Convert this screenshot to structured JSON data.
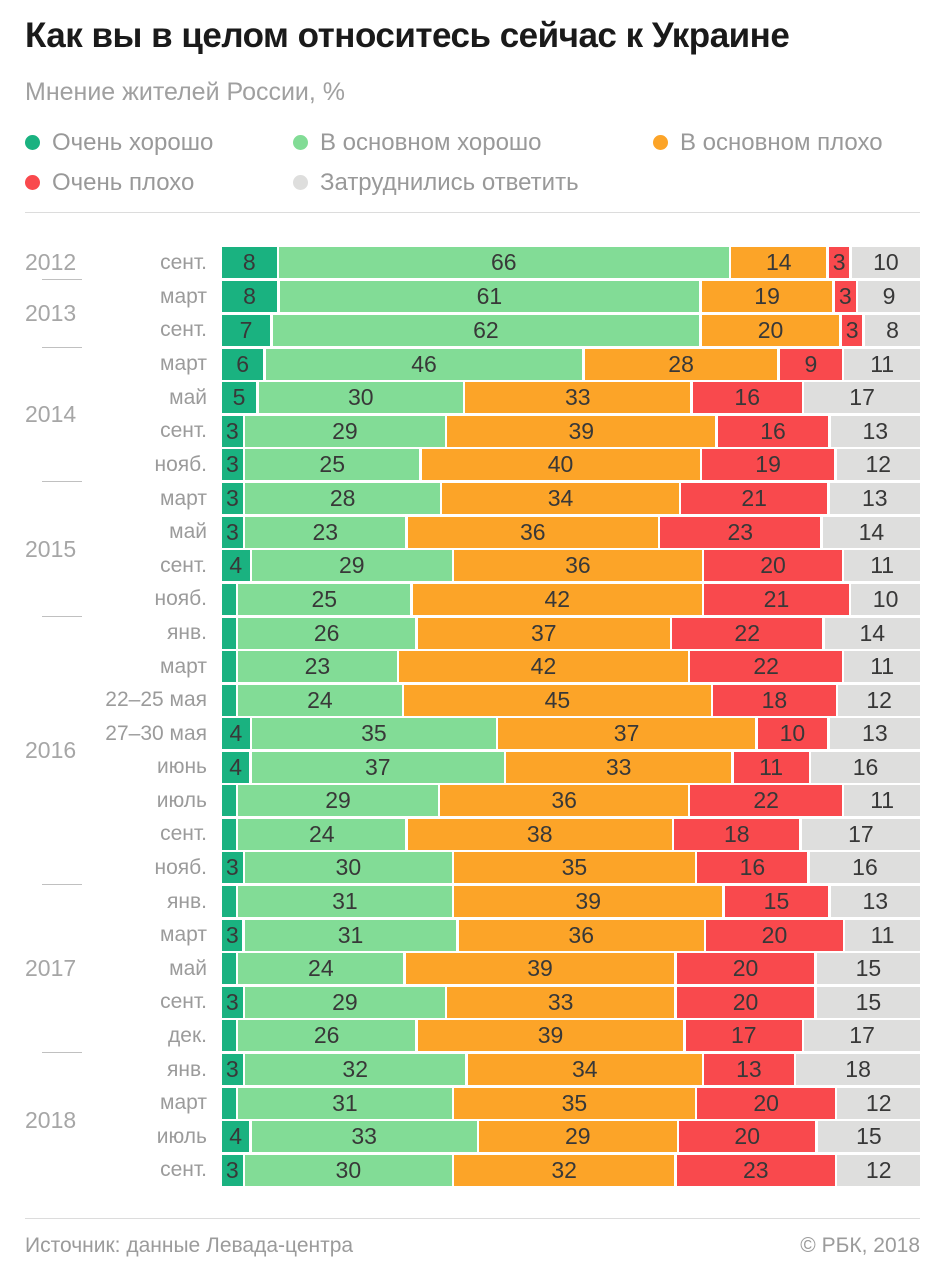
{
  "title": "Как вы в целом относитесь сейчас к Украине",
  "subtitle": "Мнение жителей России, %",
  "legend": [
    {
      "label": "Очень хорошо",
      "color": "#1ab280"
    },
    {
      "label": "В основном хорошо",
      "color": "#82dc96"
    },
    {
      "label": "В основном плохо",
      "color": "#fca428"
    },
    {
      "label": "Очень плохо",
      "color": "#f9494d"
    },
    {
      "label": "Затруднились ответить",
      "color": "#dededd"
    }
  ],
  "footer": {
    "source": "Источник: данные Левада-центра",
    "copyright": "© РБК, 2018"
  },
  "chart_data": {
    "type": "bar",
    "stacked": true,
    "orientation": "horizontal",
    "unit": "%",
    "series": [
      "Очень хорошо",
      "В основном хорошо",
      "В основном плохо",
      "Очень плохо",
      "Затруднились ответить"
    ],
    "colors": [
      "#1ab280",
      "#82dc96",
      "#fca428",
      "#f9494d",
      "#dededd"
    ],
    "value_label_min": 3,
    "legend_position": "top",
    "groups": [
      {
        "year": "2012",
        "rows": [
          {
            "month": "сент.",
            "values": [
              8,
              66,
              14,
              3,
              10
            ]
          }
        ]
      },
      {
        "year": "2013",
        "rows": [
          {
            "month": "март",
            "values": [
              8,
              61,
              19,
              3,
              9
            ]
          },
          {
            "month": "сент.",
            "values": [
              7,
              62,
              20,
              3,
              8
            ]
          }
        ]
      },
      {
        "year": "2014",
        "rows": [
          {
            "month": "март",
            "values": [
              6,
              46,
              28,
              9,
              11
            ]
          },
          {
            "month": "май",
            "values": [
              5,
              30,
              33,
              16,
              17
            ]
          },
          {
            "month": "сент.",
            "values": [
              3,
              29,
              39,
              16,
              13
            ]
          },
          {
            "month": "нояб.",
            "values": [
              3,
              25,
              40,
              19,
              12
            ]
          }
        ]
      },
      {
        "year": "2015",
        "rows": [
          {
            "month": "март",
            "values": [
              3,
              28,
              34,
              21,
              13
            ]
          },
          {
            "month": "май",
            "values": [
              3,
              23,
              36,
              23,
              14
            ]
          },
          {
            "month": "сент.",
            "values": [
              4,
              29,
              36,
              20,
              11
            ]
          },
          {
            "month": "нояб.",
            "values": [
              2,
              25,
              42,
              21,
              10
            ]
          }
        ]
      },
      {
        "year": "2016",
        "rows": [
          {
            "month": "янв.",
            "values": [
              2,
              26,
              37,
              22,
              14
            ]
          },
          {
            "month": "март",
            "values": [
              2,
              23,
              42,
              22,
              11
            ]
          },
          {
            "month": "22–25 мая",
            "values": [
              2,
              24,
              45,
              18,
              12
            ]
          },
          {
            "month": "27–30 мая",
            "values": [
              4,
              35,
              37,
              10,
              13
            ]
          },
          {
            "month": "июнь",
            "values": [
              4,
              37,
              33,
              11,
              16
            ]
          },
          {
            "month": "июль",
            "values": [
              2,
              29,
              36,
              22,
              11
            ]
          },
          {
            "month": "сент.",
            "values": [
              2,
              24,
              38,
              18,
              17
            ]
          },
          {
            "month": "нояб.",
            "values": [
              3,
              30,
              35,
              16,
              16
            ]
          }
        ]
      },
      {
        "year": "2017",
        "rows": [
          {
            "month": "янв.",
            "values": [
              2,
              31,
              39,
              15,
              13
            ]
          },
          {
            "month": "март",
            "values": [
              3,
              31,
              36,
              20,
              11
            ]
          },
          {
            "month": "май",
            "values": [
              2,
              24,
              39,
              20,
              15
            ]
          },
          {
            "month": "сент.",
            "values": [
              3,
              29,
              33,
              20,
              15
            ]
          },
          {
            "month": "дек.",
            "values": [
              2,
              26,
              39,
              17,
              17
            ]
          }
        ]
      },
      {
        "year": "2018",
        "rows": [
          {
            "month": "янв.",
            "values": [
              3,
              32,
              34,
              13,
              18
            ]
          },
          {
            "month": "март",
            "values": [
              2,
              31,
              35,
              20,
              12
            ]
          },
          {
            "month": "июль",
            "values": [
              4,
              33,
              29,
              20,
              15
            ]
          },
          {
            "month": "сент.",
            "values": [
              3,
              30,
              32,
              23,
              12
            ]
          }
        ]
      }
    ]
  }
}
